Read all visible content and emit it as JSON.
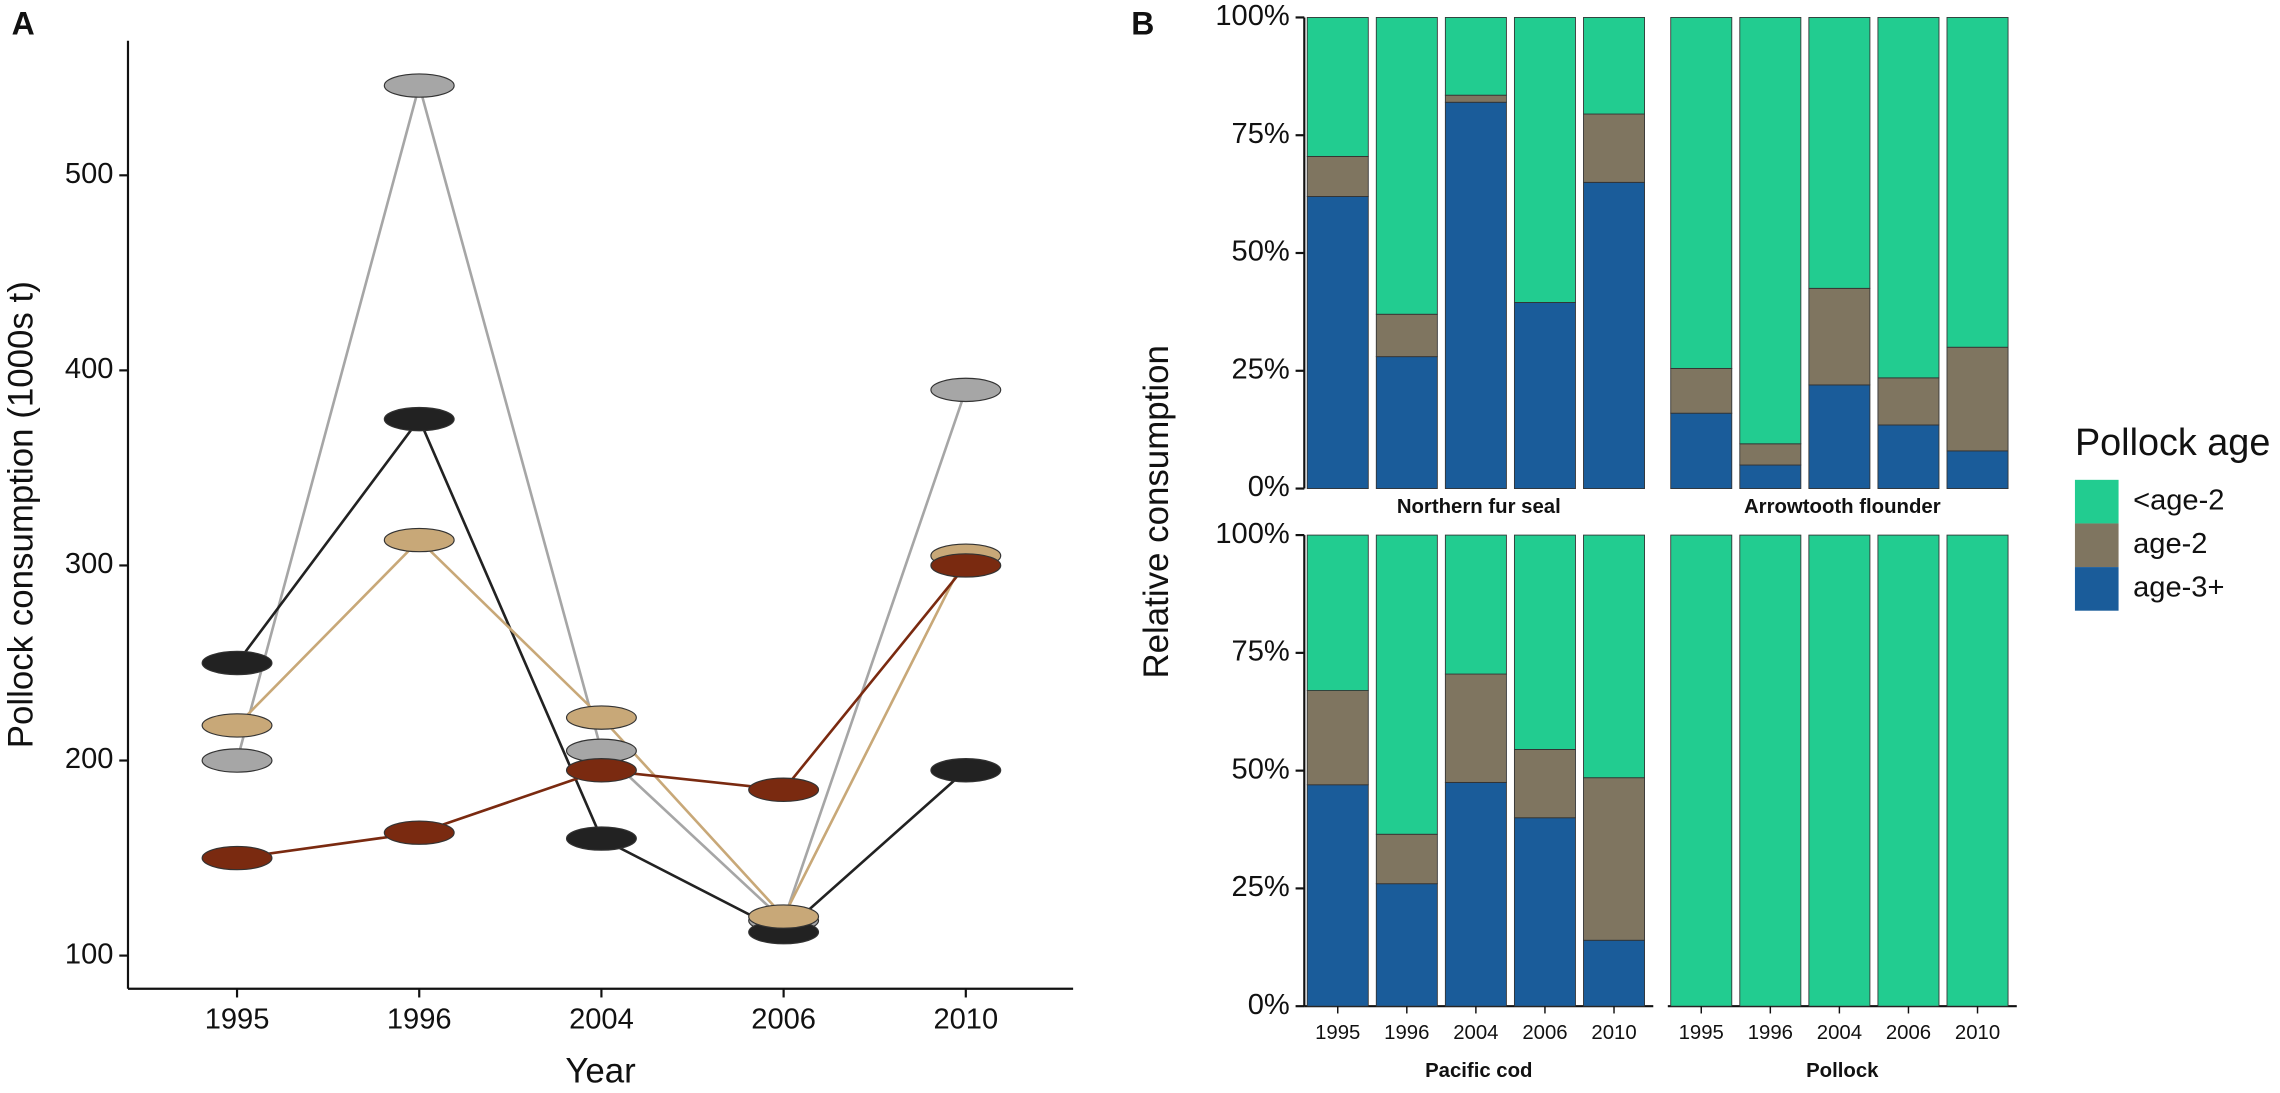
{
  "chart_data": [
    {
      "type": "line",
      "panel": "A",
      "xlabel": "Year",
      "ylabel": "Pollock consumption (1000s t)",
      "categories": [
        "1995",
        "1996",
        "2004",
        "2006",
        "2010"
      ],
      "ylim": [
        83,
        569
      ],
      "yticks": [
        100,
        200,
        300,
        400,
        500
      ],
      "series": [
        {
          "color": "#a6a6a6",
          "values": [
            200,
            546,
            205,
            118,
            390
          ]
        },
        {
          "color": "#222222",
          "values": [
            250,
            375,
            160,
            112,
            195
          ]
        },
        {
          "color": "#c8a878",
          "values": [
            218,
            313,
            222,
            120,
            305
          ]
        },
        {
          "color": "#7a2a10",
          "values": [
            150,
            163,
            195,
            185,
            300
          ]
        }
      ]
    },
    {
      "type": "stacked_bar",
      "panel": "B",
      "ylabel": "Relative consumption",
      "categories": [
        "1995",
        "1996",
        "2004",
        "2006",
        "2010"
      ],
      "ylim": [
        0,
        100
      ],
      "yticks": [
        {
          "value": 0,
          "label": "0%"
        },
        {
          "value": 25,
          "label": "25%"
        },
        {
          "value": 50,
          "label": "50%"
        },
        {
          "value": 75,
          "label": "75%"
        },
        {
          "value": 100,
          "label": "100%"
        }
      ],
      "facets": [
        "Northern fur seal",
        "Arrowtooth flounder",
        "Pacific cod",
        "Pollock"
      ],
      "legend_title": "Pollock age",
      "series": [
        {
          "name": "<age-2",
          "color": "#22cc90",
          "values": [
            [
              29.5,
              63,
              16.5,
              60.5,
              20.5
            ],
            [
              74.5,
              90.5,
              57.5,
              76.5,
              70
            ],
            [
              33,
              63.5,
              29.5,
              45.5,
              51.5
            ],
            [
              100,
              100,
              100,
              100,
              100
            ]
          ]
        },
        {
          "name": "age-2",
          "color": "#7f7560",
          "values": [
            [
              8.5,
              9,
              1.5,
              0,
              14.5
            ],
            [
              9.5,
              4.5,
              20.5,
              10,
              22
            ],
            [
              20,
              10.5,
              23,
              14.5,
              34.5
            ],
            [
              0,
              0,
              0,
              0,
              0
            ]
          ]
        },
        {
          "name": "age-3+",
          "color": "#1a5c9a",
          "values": [
            [
              62,
              28,
              82,
              39.5,
              65
            ],
            [
              16,
              5,
              22,
              13.5,
              8
            ],
            [
              47,
              26,
              47.5,
              40,
              14
            ],
            [
              0,
              0,
              0,
              0,
              0
            ]
          ]
        }
      ]
    }
  ]
}
